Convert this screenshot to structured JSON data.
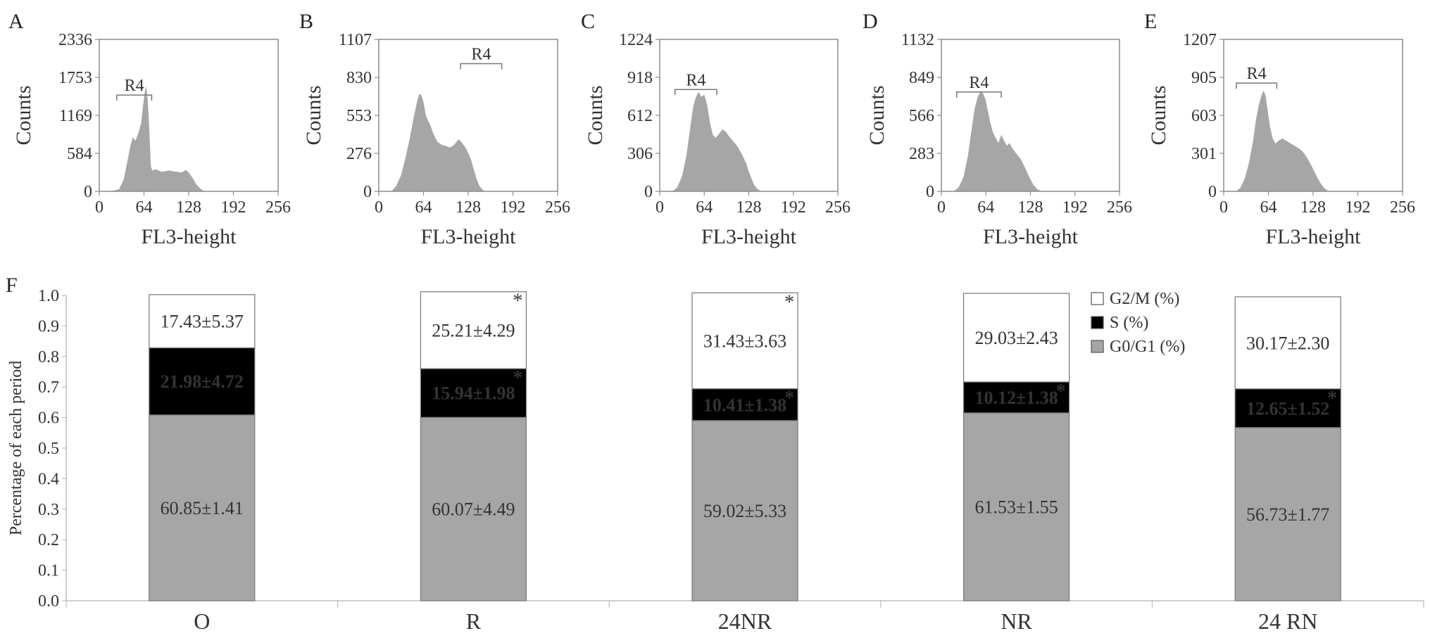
{
  "chart_data": [
    {
      "panel": "A",
      "type": "area",
      "xlabel": "FL3-height",
      "ylabel": "Counts",
      "x_ticks": [
        "0",
        "64",
        "128",
        "192",
        "256"
      ],
      "y_ticks": [
        "0",
        "584",
        "1169",
        "1753",
        "2336"
      ],
      "xlim": [
        0,
        256
      ],
      "ylim": [
        0,
        2336
      ],
      "gate": {
        "label": "R4",
        "range": [
          25,
          75
        ],
        "level": 1480
      },
      "x": [
        15,
        28,
        35,
        40,
        45,
        48,
        52,
        56,
        60,
        63,
        65,
        67,
        69,
        71,
        73,
        74,
        76,
        80,
        90,
        100,
        110,
        118,
        124,
        128,
        134,
        138,
        142,
        146,
        150
      ],
      "y": [
        0,
        30,
        180,
        450,
        720,
        830,
        780,
        900,
        1050,
        1350,
        1520,
        1620,
        1450,
        1100,
        600,
        380,
        320,
        340,
        300,
        320,
        300,
        290,
        330,
        290,
        200,
        120,
        70,
        30,
        0
      ]
    },
    {
      "panel": "B",
      "type": "area",
      "xlabel": "FL3-height",
      "ylabel": "Counts",
      "x_ticks": [
        "0",
        "64",
        "128",
        "192",
        "256"
      ],
      "y_ticks": [
        "0",
        "276",
        "553",
        "830",
        "1107"
      ],
      "xlim": [
        0,
        256
      ],
      "ylim": [
        0,
        1107
      ],
      "gate": {
        "label": "R4",
        "range": [
          117,
          176
        ],
        "level": 930
      },
      "x": [
        18,
        25,
        32,
        38,
        44,
        50,
        55,
        58,
        61,
        64,
        67,
        70,
        74,
        78,
        84,
        90,
        96,
        102,
        108,
        114,
        118,
        124,
        128,
        132,
        136,
        140,
        144,
        148,
        152
      ],
      "y": [
        0,
        40,
        120,
        240,
        380,
        540,
        660,
        710,
        700,
        650,
        560,
        520,
        480,
        420,
        360,
        340,
        330,
        320,
        340,
        380,
        360,
        320,
        280,
        230,
        160,
        90,
        40,
        15,
        0
      ]
    },
    {
      "panel": "C",
      "type": "area",
      "xlabel": "FL3-height",
      "ylabel": "Counts",
      "x_ticks": [
        "0",
        "64",
        "128",
        "192",
        "256"
      ],
      "y_ticks": [
        "0",
        "306",
        "612",
        "918",
        "1224"
      ],
      "xlim": [
        0,
        256
      ],
      "ylim": [
        0,
        1224
      ],
      "gate": {
        "label": "R4",
        "range": [
          22,
          82
        ],
        "level": 820
      },
      "x": [
        18,
        25,
        32,
        38,
        44,
        48,
        52,
        56,
        60,
        64,
        68,
        72,
        76,
        80,
        85,
        90,
        95,
        100,
        106,
        112,
        118,
        124,
        128,
        132,
        136,
        140,
        146
      ],
      "y": [
        0,
        30,
        120,
        280,
        520,
        680,
        760,
        800,
        760,
        780,
        700,
        560,
        460,
        430,
        460,
        500,
        480,
        440,
        400,
        360,
        300,
        230,
        160,
        100,
        50,
        20,
        0
      ]
    },
    {
      "panel": "D",
      "type": "area",
      "xlabel": "FL3-height",
      "ylabel": "Counts",
      "x_ticks": [
        "0",
        "64",
        "128",
        "192",
        "256"
      ],
      "y_ticks": [
        "0",
        "283",
        "566",
        "849",
        "1132"
      ],
      "xlim": [
        0,
        256
      ],
      "ylim": [
        0,
        1132
      ],
      "gate": {
        "label": "R4",
        "range": [
          22,
          86
        ],
        "level": 740
      },
      "x": [
        18,
        25,
        32,
        38,
        44,
        48,
        52,
        56,
        60,
        63,
        66,
        70,
        74,
        78,
        82,
        86,
        90,
        94,
        98,
        102,
        108,
        114,
        120,
        126,
        132,
        138,
        144
      ],
      "y": [
        0,
        30,
        110,
        260,
        480,
        620,
        700,
        740,
        730,
        690,
        620,
        520,
        440,
        400,
        360,
        420,
        380,
        340,
        360,
        320,
        280,
        240,
        180,
        110,
        50,
        15,
        0
      ]
    },
    {
      "panel": "E",
      "type": "area",
      "xlabel": "FL3-height",
      "ylabel": "Counts",
      "x_ticks": [
        "0",
        "64",
        "128",
        "192",
        "256"
      ],
      "y_ticks": [
        "0",
        "301",
        "603",
        "905",
        "1207"
      ],
      "xlim": [
        0,
        256
      ],
      "ylim": [
        0,
        1207
      ],
      "gate": {
        "label": "R4",
        "range": [
          18,
          76
        ],
        "level": 860
      },
      "x": [
        18,
        24,
        30,
        36,
        42,
        46,
        50,
        54,
        57,
        60,
        63,
        66,
        70,
        74,
        78,
        84,
        90,
        96,
        102,
        108,
        114,
        120,
        126,
        132,
        138,
        144,
        150
      ],
      "y": [
        0,
        30,
        100,
        220,
        400,
        560,
        680,
        760,
        800,
        760,
        640,
        520,
        420,
        380,
        400,
        420,
        400,
        380,
        360,
        340,
        310,
        260,
        200,
        130,
        70,
        25,
        0
      ]
    },
    {
      "panel": "F",
      "type": "bar",
      "stacked": true,
      "ylabel": "Percentage of each period",
      "ylim": [
        0,
        1.0
      ],
      "y_ticks": [
        "0.0",
        "0.1",
        "0.2",
        "0.3",
        "0.4",
        "0.5",
        "0.6",
        "0.7",
        "0.8",
        "0.9",
        "1.0"
      ],
      "categories": [
        "O",
        "R",
        "24NR",
        "NR",
        "24 RN"
      ],
      "legend_position": "top-right",
      "series": [
        {
          "name": "G0/G1 (%)",
          "color": "#a6a6a6",
          "values": [
            0.6085,
            0.6007,
            0.5902,
            0.6153,
            0.5673
          ],
          "labels": [
            "60.85±1.41",
            "60.07±4.49",
            "59.02±5.33",
            "61.53±1.55",
            "56.73±1.77"
          ],
          "stars": [
            false,
            false,
            false,
            false,
            false
          ]
        },
        {
          "name": "S (%)",
          "color": "#000000",
          "values": [
            0.2198,
            0.1594,
            0.1041,
            0.1012,
            0.1265
          ],
          "labels": [
            "21.98±4.72",
            "15.94±1.98",
            "10.41±1.38",
            "10.12±1.38",
            "12.65±1.52"
          ],
          "stars": [
            false,
            true,
            true,
            true,
            true
          ]
        },
        {
          "name": "G2/M (%)",
          "color": "#ffffff",
          "values": [
            0.1743,
            0.2521,
            0.3143,
            0.2903,
            0.3017
          ],
          "labels": [
            "17.43±5.37",
            "25.21±4.29",
            "31.43±3.63",
            "29.03±2.43",
            "30.17±2.30"
          ],
          "stars": [
            false,
            true,
            true,
            false,
            false
          ]
        }
      ]
    }
  ],
  "star_symbol": "*"
}
